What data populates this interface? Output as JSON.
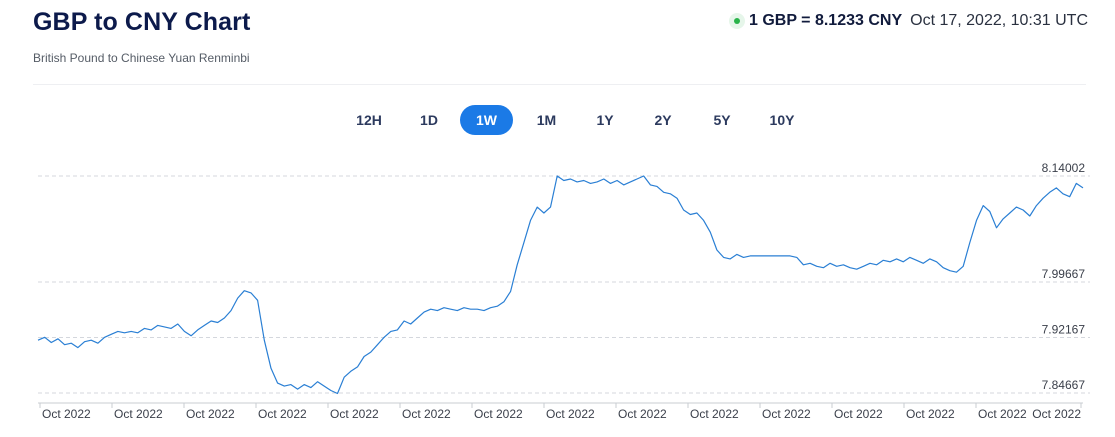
{
  "header": {
    "title": "GBP to CNY Chart",
    "subtitle": "British Pound to Chinese Yuan Renminbi",
    "rate_text": "1 GBP = 8.1233 CNY",
    "timestamp": "Oct 17, 2022, 10:31 UTC"
  },
  "tabs": [
    {
      "label": "12H",
      "active": false
    },
    {
      "label": "1D",
      "active": false
    },
    {
      "label": "1W",
      "active": true
    },
    {
      "label": "1M",
      "active": false
    },
    {
      "label": "1Y",
      "active": false
    },
    {
      "label": "2Y",
      "active": false
    },
    {
      "label": "5Y",
      "active": false
    },
    {
      "label": "10Y",
      "active": false
    }
  ],
  "colors": {
    "accent": "#1b7ae6",
    "line": "#2a7fd4",
    "live": "#29b34a"
  },
  "chart_data": {
    "type": "line",
    "title": "",
    "xlabel": "",
    "ylabel": "",
    "y_ticks": [
      7.84667,
      7.92167,
      7.99667,
      8.14002
    ],
    "y_tick_labels": [
      "7.84667",
      "7.92167",
      "7.99667",
      "8.14002"
    ],
    "x_tick_labels": [
      "Oct 2022",
      "Oct 2022",
      "Oct 2022",
      "Oct 2022",
      "Oct 2022",
      "Oct 2022",
      "Oct 2022",
      "Oct 2022",
      "Oct 2022",
      "Oct 2022",
      "Oct 2022",
      "Oct 2022",
      "Oct 2022",
      "Oct 2022",
      "Oct 2022"
    ],
    "grid": "horizontal dashed",
    "series": [
      {
        "values": [
          7.918,
          7.922,
          7.915,
          7.92,
          7.912,
          7.914,
          7.908,
          7.916,
          7.918,
          7.914,
          7.922,
          7.926,
          7.93,
          7.928,
          7.93,
          7.928,
          7.934,
          7.932,
          7.938,
          7.936,
          7.934,
          7.94,
          7.93,
          7.924,
          7.932,
          7.938,
          7.944,
          7.942,
          7.948,
          7.958,
          7.975,
          7.985,
          7.982,
          7.972,
          7.918,
          7.88,
          7.86,
          7.856,
          7.858,
          7.852,
          7.858,
          7.854,
          7.862,
          7.856,
          7.85,
          7.846,
          7.868,
          7.876,
          7.882,
          7.896,
          7.902,
          7.912,
          7.922,
          7.93,
          7.932,
          7.944,
          7.94,
          7.948,
          7.956,
          7.96,
          7.958,
          7.962,
          7.96,
          7.958,
          7.962,
          7.96,
          7.96,
          7.958,
          7.962,
          7.964,
          7.97,
          7.984,
          8.02,
          8.05,
          8.08,
          8.098,
          8.09,
          8.098,
          8.14,
          8.134,
          8.136,
          8.132,
          8.134,
          8.13,
          8.132,
          8.136,
          8.13,
          8.134,
          8.128,
          8.132,
          8.136,
          8.14,
          8.128,
          8.126,
          8.118,
          8.116,
          8.11,
          8.094,
          8.088,
          8.09,
          8.08,
          8.064,
          8.04,
          8.03,
          8.028,
          8.034,
          8.03,
          8.032,
          8.032,
          8.032,
          8.032,
          8.032,
          8.032,
          8.032,
          8.03,
          8.02,
          8.022,
          8.018,
          8.016,
          8.022,
          8.018,
          8.02,
          8.016,
          8.014,
          8.018,
          8.022,
          8.02,
          8.026,
          8.024,
          8.028,
          8.024,
          8.03,
          8.026,
          8.022,
          8.028,
          8.024,
          8.016,
          8.012,
          8.01,
          8.018,
          8.05,
          8.08,
          8.1,
          8.092,
          8.07,
          8.082,
          8.09,
          8.098,
          8.094,
          8.086,
          8.1,
          8.11,
          8.118,
          8.124,
          8.116,
          8.112,
          8.13,
          8.124
        ]
      }
    ]
  }
}
